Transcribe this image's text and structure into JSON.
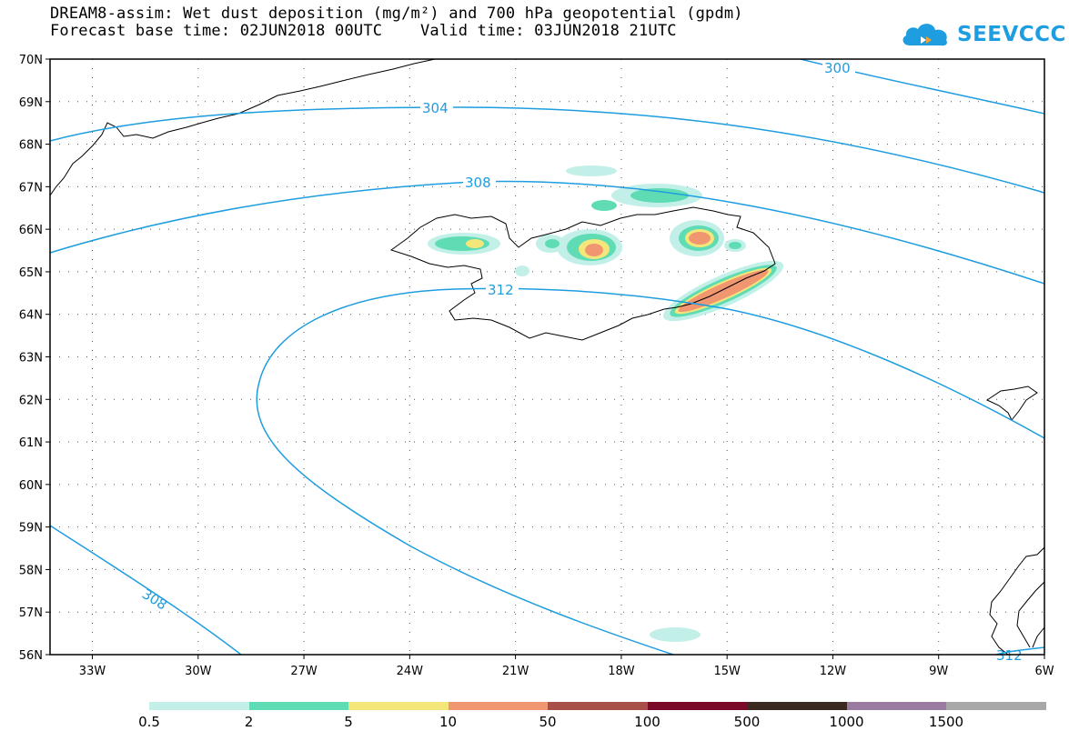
{
  "title": {
    "line1": "DREAM8-assim: Wet dust deposition (mg/m²) and 700 hPa geopotential (gpdm)",
    "line2": "Forecast base time: 02JUN2018 00UTC    Valid time: 03JUN2018 21UTC"
  },
  "logo": {
    "text": "SEEVCCC",
    "icon": "cloud-icon",
    "color": "#1e9de0"
  },
  "map": {
    "lat_range": [
      56,
      70
    ],
    "lon_range": [
      -34.2,
      -6
    ],
    "lat_labels": [
      "70N",
      "69N",
      "68N",
      "67N",
      "66N",
      "65N",
      "64N",
      "63N",
      "62N",
      "61N",
      "60N",
      "59N",
      "58N",
      "57N",
      "56N"
    ],
    "lon_labels": [
      "33W",
      "30W",
      "27W",
      "24W",
      "21W",
      "18W",
      "15W",
      "12W",
      "9W",
      "6W"
    ],
    "contour_color": "#1e9de0",
    "contour_labels": [
      "300",
      "304",
      "308",
      "312",
      "308",
      "312"
    ]
  },
  "legend": {
    "labels": [
      "0.5",
      "2",
      "5",
      "10",
      "50",
      "100",
      "500",
      "1000",
      "1500"
    ],
    "colors": [
      "#c2f0e8",
      "#5fdcb4",
      "#f5e67a",
      "#f09670",
      "#a84f48",
      "#7a0a28",
      "#3a2a20",
      "#9a7aa0",
      "#a8a8a8"
    ]
  }
}
